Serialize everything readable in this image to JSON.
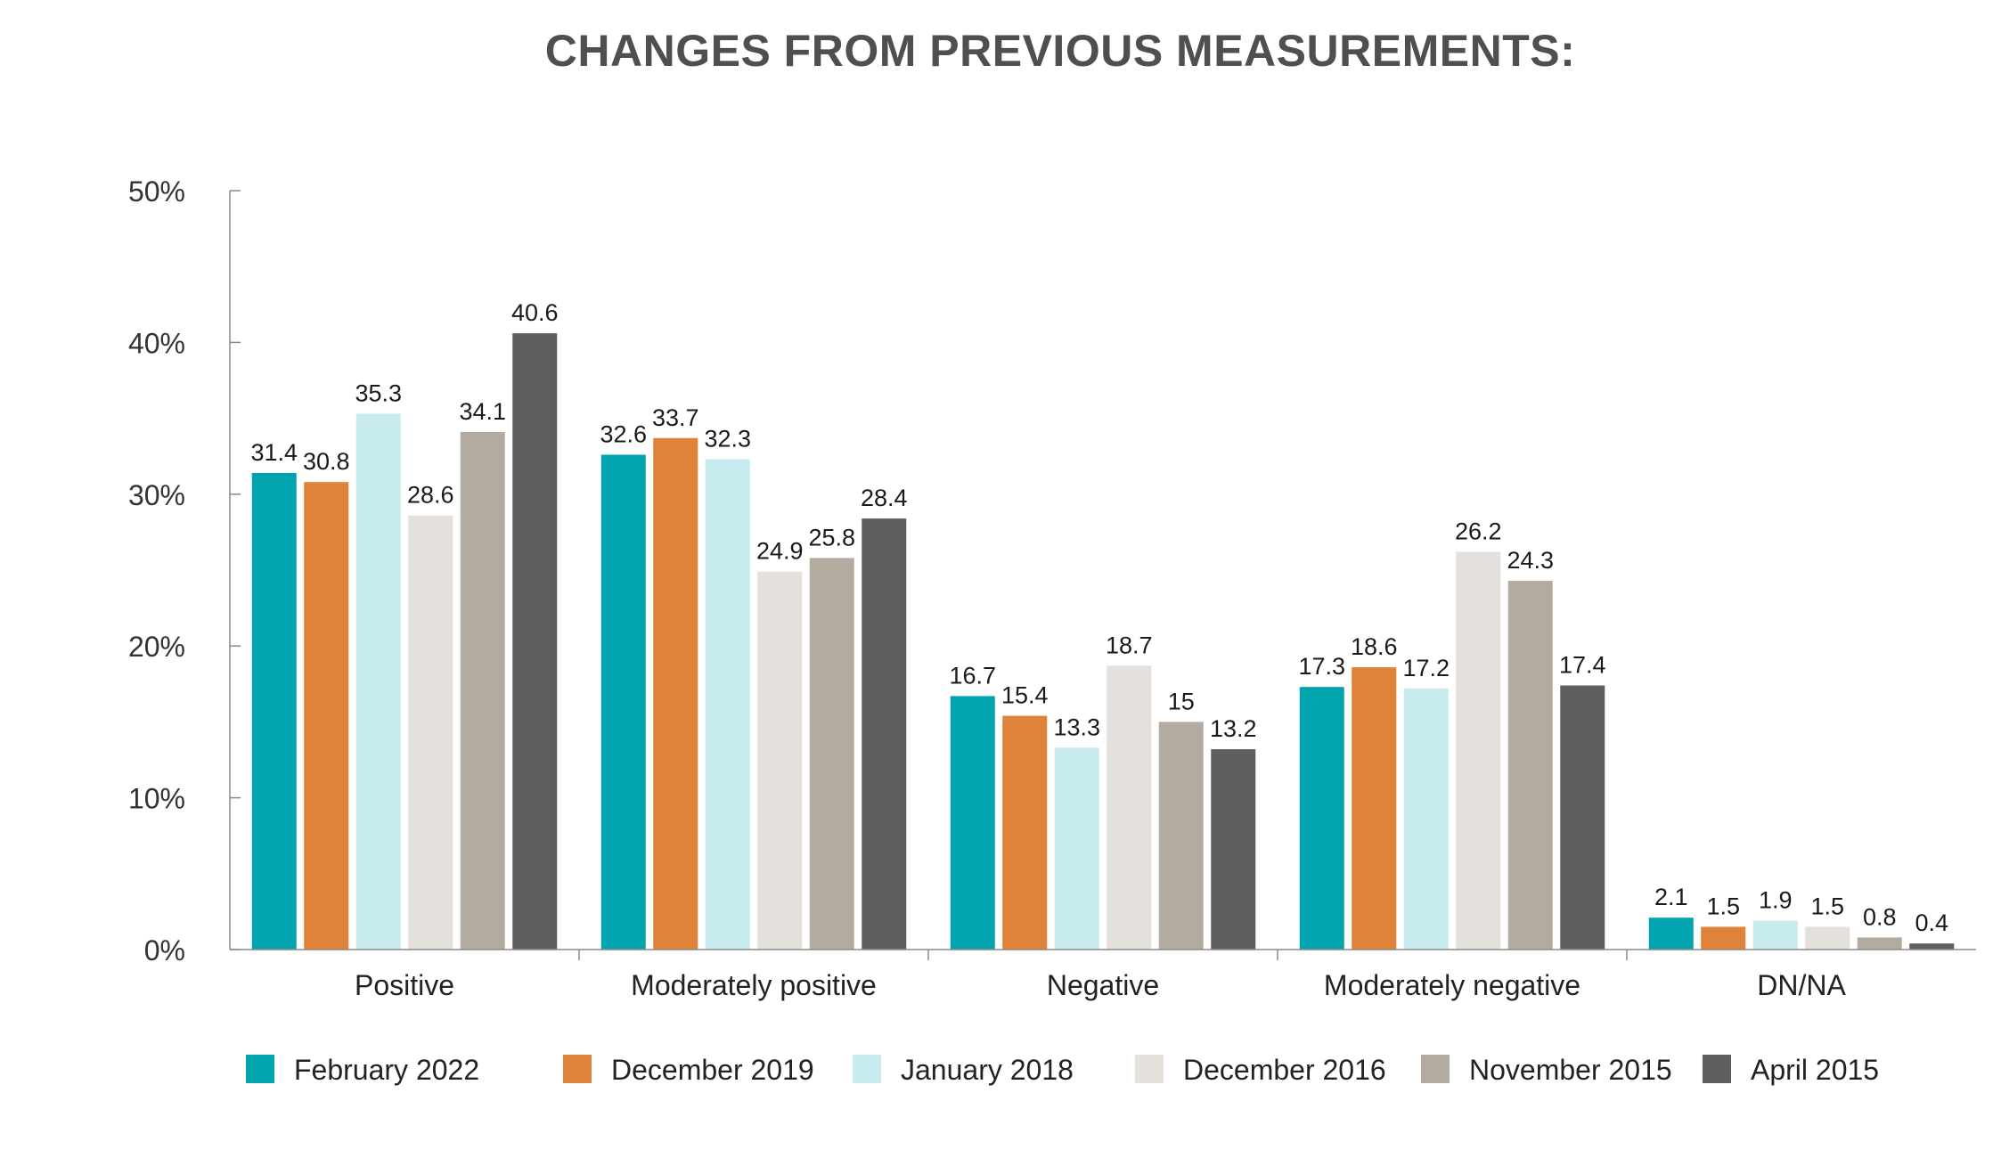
{
  "chart_data": {
    "type": "bar",
    "title": "CHANGES FROM PREVIOUS MEASUREMENTS:",
    "xlabel": "",
    "ylabel": "",
    "ylim": [
      0,
      50
    ],
    "yticks": [
      "0%",
      "10%",
      "20%",
      "30%",
      "40%",
      "50%"
    ],
    "grid": false,
    "legend_position": "bottom",
    "categories": [
      "Positive",
      "Moderately positive",
      "Negative",
      "Moderately negative",
      "DN/NA"
    ],
    "series": [
      {
        "name": "February 2022",
        "color": "#00a3ae",
        "values": [
          31.4,
          32.6,
          16.7,
          17.3,
          2.1
        ]
      },
      {
        "name": "December 2019",
        "color": "#df833a",
        "values": [
          30.8,
          33.7,
          15.4,
          18.6,
          1.5
        ]
      },
      {
        "name": "January 2018",
        "color": "#c7ebee",
        "values": [
          35.3,
          32.3,
          13.3,
          17.2,
          1.9
        ]
      },
      {
        "name": "December 2016",
        "color": "#e4e0dc",
        "values": [
          28.6,
          24.9,
          18.7,
          26.2,
          1.5
        ]
      },
      {
        "name": "November 2015",
        "color": "#b3aba0",
        "values": [
          34.1,
          25.8,
          15,
          24.3,
          0.8
        ]
      },
      {
        "name": "April 2015",
        "color": "#5f5f5f",
        "values": [
          40.6,
          28.4,
          13.2,
          17.4,
          0.4
        ]
      }
    ],
    "data_labels": [
      [
        "31.4",
        "32.6",
        "16.7",
        "17.3",
        "2.1"
      ],
      [
        "30.8",
        "33.7",
        "15.4",
        "18.6",
        "1.5"
      ],
      [
        "35.3",
        "32.3",
        "13.3",
        "17.2",
        "1.9"
      ],
      [
        "28.6",
        "24.9",
        "18.7",
        "26.2",
        "1.5"
      ],
      [
        "34.1",
        "25.8",
        "15",
        "24.3",
        "0.8"
      ],
      [
        "40.6",
        "28.4",
        "13.2",
        "17.4",
        "0.4"
      ]
    ]
  }
}
